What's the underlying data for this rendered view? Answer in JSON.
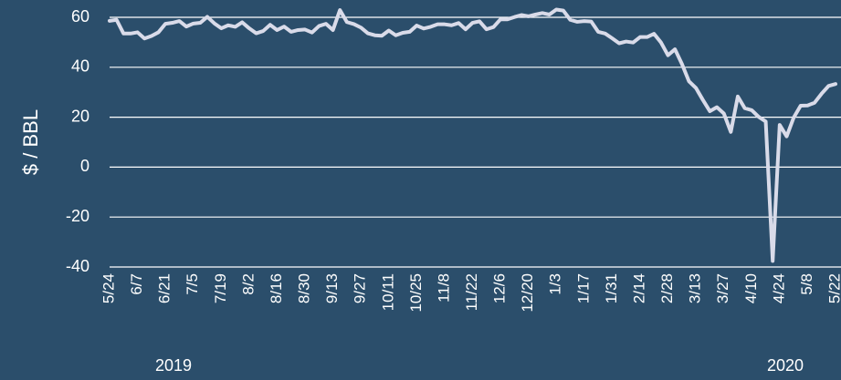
{
  "chart_data": {
    "type": "line",
    "y_label": "$ / BBL",
    "year_labels": [
      "2019",
      "2020"
    ],
    "categories": [
      "5/24",
      null,
      null,
      null,
      "6/7",
      null,
      null,
      null,
      "6/21",
      null,
      null,
      null,
      "7/5",
      null,
      null,
      null,
      "7/19",
      null,
      null,
      null,
      "8/2",
      null,
      null,
      null,
      "8/16",
      null,
      null,
      null,
      "8/30",
      null,
      null,
      null,
      "9/13",
      null,
      null,
      null,
      "9/27",
      null,
      null,
      null,
      "10/11",
      null,
      null,
      null,
      "10/25",
      null,
      null,
      null,
      "11/8",
      null,
      null,
      null,
      "11/22",
      null,
      null,
      null,
      "12/6",
      null,
      null,
      null,
      "12/20",
      null,
      null,
      null,
      "1/3",
      null,
      null,
      null,
      "1/17",
      null,
      null,
      null,
      "1/31",
      null,
      null,
      null,
      "2/14",
      null,
      null,
      null,
      "2/28",
      null,
      null,
      null,
      "3/13",
      null,
      null,
      null,
      "3/27",
      null,
      null,
      null,
      "4/10",
      null,
      null,
      null,
      "4/24",
      null,
      null,
      null,
      "5/8",
      null,
      null,
      null,
      "5/22"
    ],
    "values": [
      58.6,
      59,
      53.5,
      53.5,
      54,
      51.5,
      52.5,
      54,
      57.4,
      57.8,
      58.5,
      56.3,
      57.5,
      57.8,
      60.2,
      57.6,
      55.6,
      56.8,
      56.2,
      58,
      55.6,
      53.6,
      54.5,
      57,
      54.9,
      56.3,
      54.2,
      54.9,
      55.1,
      53.9,
      56.5,
      57.4,
      54.9,
      62.9,
      58.1,
      57.3,
      55.9,
      53.6,
      52.8,
      52.6,
      54.7,
      52.8,
      53.8,
      54.2,
      56.7,
      55.5,
      56.2,
      57.2,
      57.2,
      56.8,
      57.7,
      55.2,
      57.8,
      58.4,
      55.2,
      56.1,
      59.2,
      59.2,
      60.1,
      60.9,
      60.4,
      61.1,
      61.7,
      61.1,
      63.1,
      62.7,
      59,
      58.2,
      58.5,
      58.3,
      54.2,
      53.5,
      51.6,
      49.6,
      50.3,
      49.9,
      52.1,
      52.1,
      53.4,
      49.9,
      44.8,
      47.2,
      41.3,
      34.4,
      31.7,
      26.9,
      22.4,
      24,
      21.5,
      14.1,
      28.3,
      23.6,
      22.8,
      20.1,
      18.3,
      -37.6,
      16.9,
      12.3,
      19.8,
      24.6,
      24.7,
      25.8,
      29.4,
      32.5,
      33.3
    ],
    "color": "#d9dbe9",
    "ylim": [
      -40,
      60
    ],
    "yticks": [
      -40,
      -20,
      0,
      20,
      40,
      60
    ],
    "grid": true
  }
}
